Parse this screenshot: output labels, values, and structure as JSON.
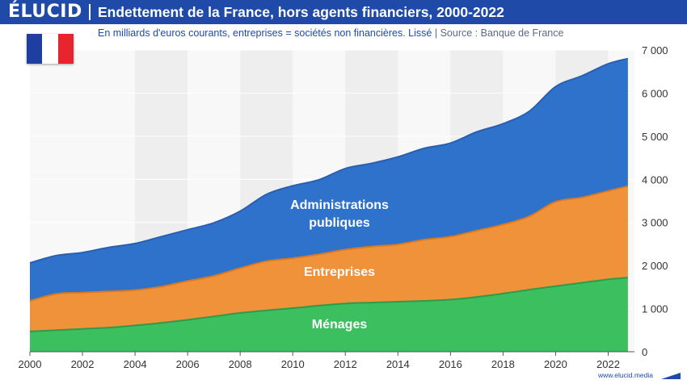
{
  "header": {
    "logo": "ÉLUCID",
    "title": "Endettement de la France, hors agents financiers, 2000-2022"
  },
  "subtitle": {
    "main": "En milliards d'euros courants, entreprises = sociétés non financières. Lissé",
    "separator": "|",
    "source": "Source : Banque de France"
  },
  "flag": {
    "colors": [
      "#1e3fa0",
      "#ffffff",
      "#e8242f"
    ]
  },
  "footer": {
    "url": "www.elucid.media"
  },
  "colors": {
    "menages": "#3cbf5f",
    "entreprises": "#f0923a",
    "administrations": "#2f72cc",
    "header": "#1f4aa8",
    "band": "#eeeeee"
  },
  "chart_data": {
    "type": "area",
    "stacked": true,
    "x": [
      2000,
      2001,
      2002,
      2003,
      2004,
      2005,
      2006,
      2007,
      2008,
      2009,
      2010,
      2011,
      2012,
      2013,
      2014,
      2015,
      2016,
      2017,
      2018,
      2019,
      2020,
      2021,
      2022,
      2022.75
    ],
    "series": [
      {
        "name": "Ménages",
        "values": [
          470,
          500,
          530,
          560,
          610,
          670,
          740,
          820,
          900,
          960,
          1010,
          1070,
          1120,
          1140,
          1160,
          1180,
          1210,
          1270,
          1350,
          1440,
          1520,
          1600,
          1680,
          1720
        ]
      },
      {
        "name": "Entreprises",
        "values": [
          710,
          840,
          840,
          840,
          820,
          840,
          900,
          940,
          1040,
          1140,
          1160,
          1190,
          1250,
          1300,
          1330,
          1420,
          1460,
          1540,
          1600,
          1700,
          1960,
          1980,
          2050,
          2120
        ]
      },
      {
        "name": "Administrations publiques",
        "values": [
          880,
          890,
          930,
          1020,
          1080,
          1160,
          1190,
          1230,
          1320,
          1550,
          1680,
          1730,
          1880,
          1930,
          2030,
          2120,
          2170,
          2290,
          2340,
          2440,
          2670,
          2820,
          2950,
          2960
        ]
      }
    ],
    "series_labels": [
      {
        "series": "Ménages",
        "text": "Ménages"
      },
      {
        "series": "Entreprises",
        "text": "Entreprises"
      },
      {
        "series": "Administrations publiques",
        "text": "Administrations publiques"
      }
    ],
    "xticks": [
      2000,
      2002,
      2004,
      2006,
      2008,
      2010,
      2012,
      2014,
      2016,
      2018,
      2020,
      2022
    ],
    "yticks": [
      0,
      1000,
      2000,
      3000,
      4000,
      5000,
      6000,
      7000
    ],
    "ytick_labels": [
      "0",
      "1 000",
      "2 000",
      "3 000",
      "4 000",
      "5 000",
      "6 000",
      "7 000"
    ],
    "xlim": [
      2000,
      2023
    ],
    "ylim": [
      0,
      7000
    ],
    "y_axis_position": "right",
    "background_bands": "alternating every 2 years"
  }
}
